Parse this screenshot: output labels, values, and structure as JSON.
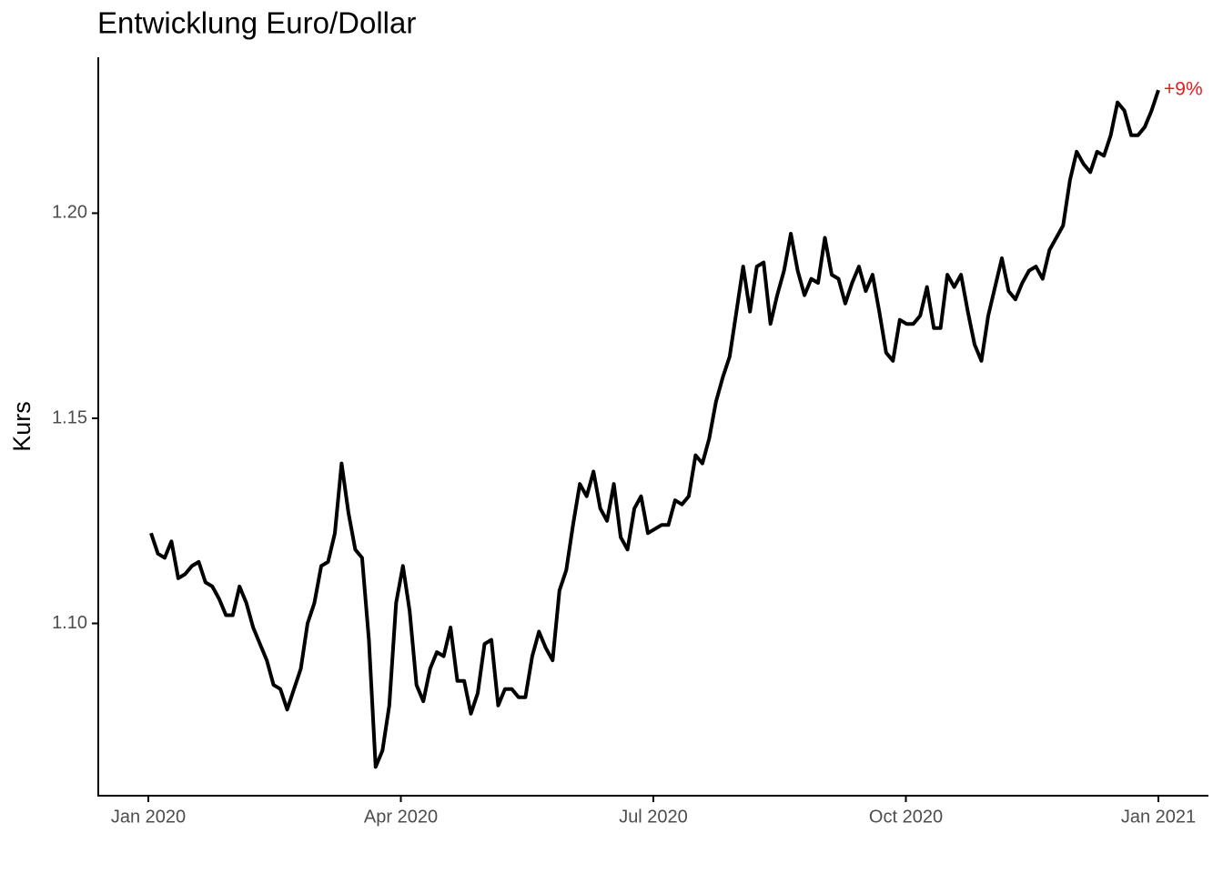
{
  "chart_data": {
    "type": "line",
    "title": "Entwicklung Euro/Dollar",
    "y_label": "Kurs",
    "annotation": "+9%",
    "annotation_color": "#e41a1c",
    "series": [
      {
        "color": "#000000",
        "values": [
          1.122,
          1.117,
          1.116,
          1.12,
          1.111,
          1.112,
          1.114,
          1.115,
          1.11,
          1.109,
          1.106,
          1.102,
          1.102,
          1.109,
          1.105,
          1.099,
          1.095,
          1.091,
          1.085,
          1.084,
          1.079,
          1.084,
          1.089,
          1.1,
          1.105,
          1.114,
          1.115,
          1.122,
          1.139,
          1.127,
          1.118,
          1.116,
          1.096,
          1.065,
          1.069,
          1.08,
          1.105,
          1.114,
          1.103,
          1.085,
          1.081,
          1.089,
          1.093,
          1.092,
          1.099,
          1.086,
          1.086,
          1.078,
          1.083,
          1.095,
          1.096,
          1.08,
          1.084,
          1.084,
          1.082,
          1.082,
          1.092,
          1.098,
          1.094,
          1.091,
          1.108,
          1.113,
          1.124,
          1.134,
          1.131,
          1.137,
          1.128,
          1.125,
          1.134,
          1.121,
          1.118,
          1.128,
          1.131,
          1.122,
          1.123,
          1.124,
          1.124,
          1.13,
          1.129,
          1.131,
          1.141,
          1.139,
          1.145,
          1.154,
          1.16,
          1.165,
          1.176,
          1.187,
          1.176,
          1.187,
          1.188,
          1.173,
          1.18,
          1.186,
          1.195,
          1.186,
          1.18,
          1.184,
          1.183,
          1.194,
          1.185,
          1.184,
          1.178,
          1.183,
          1.187,
          1.181,
          1.185,
          1.176,
          1.166,
          1.164,
          1.174,
          1.173,
          1.173,
          1.175,
          1.182,
          1.172,
          1.172,
          1.185,
          1.182,
          1.185,
          1.176,
          1.168,
          1.164,
          1.175,
          1.182,
          1.189,
          1.181,
          1.179,
          1.183,
          1.186,
          1.187,
          1.184,
          1.191,
          1.194,
          1.197,
          1.208,
          1.215,
          1.212,
          1.21,
          1.215,
          1.214,
          1.219,
          1.227,
          1.225,
          1.219,
          1.219,
          1.221,
          1.225,
          1.23
        ]
      }
    ],
    "ylim": [
      1.058,
      1.238
    ],
    "yticks": [
      {
        "value": 1.1,
        "label": "1.10"
      },
      {
        "value": 1.15,
        "label": "1.15"
      },
      {
        "value": 1.2,
        "label": "1.20"
      }
    ],
    "xticks": [
      {
        "value": "2020-01",
        "label": "Jan 2020"
      },
      {
        "value": "2020-04",
        "label": "Apr 2020"
      },
      {
        "value": "2020-07",
        "label": "Jul 2020"
      },
      {
        "value": "2020-10",
        "label": "Oct 2020"
      },
      {
        "value": "2021-01",
        "label": "Jan 2021"
      }
    ]
  }
}
